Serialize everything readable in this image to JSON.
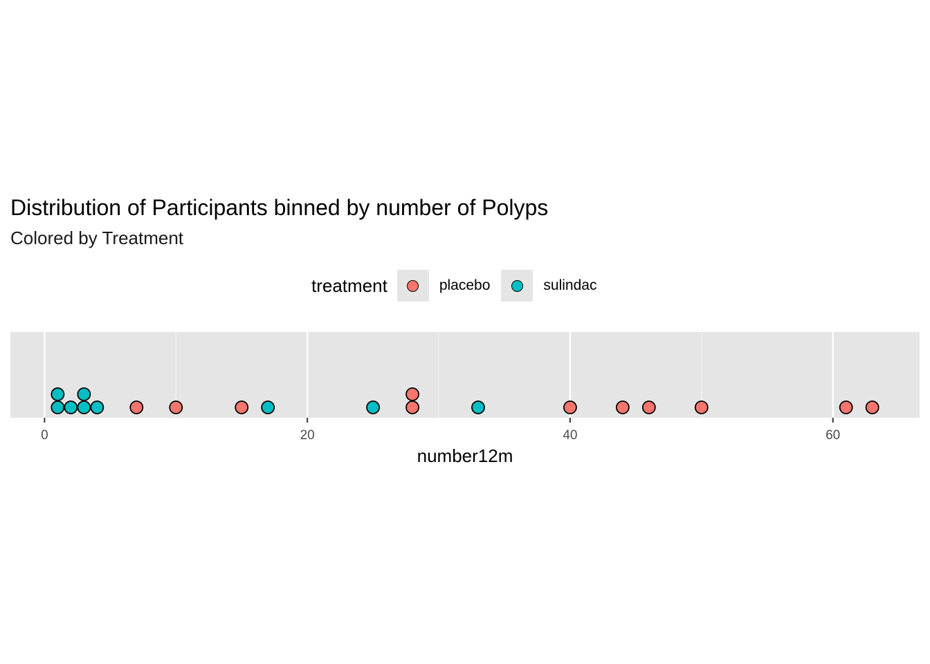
{
  "chart_data": {
    "type": "dotplot",
    "title": "Distribution of Participants binned by number of Polyps",
    "subtitle": "Colored by Treatment",
    "xlabel": "number12m",
    "ylabel": "",
    "xlim": [
      -2.6,
      66.6
    ],
    "xticks": [
      0,
      20,
      40,
      60
    ],
    "grid": true,
    "legend": {
      "title": "treatment",
      "placement": "top",
      "entries": [
        {
          "name": "placebo",
          "color": "#F8766D"
        },
        {
          "name": "sulindac",
          "color": "#00BFC4"
        }
      ]
    },
    "series": [
      {
        "name": "placebo",
        "color": "#F8766D",
        "points": [
          [
            7,
            1
          ],
          [
            10,
            1
          ],
          [
            15,
            1
          ],
          [
            28,
            2
          ],
          [
            40,
            1
          ],
          [
            44,
            1
          ],
          [
            46,
            1
          ],
          [
            50,
            1
          ],
          [
            61,
            1
          ],
          [
            63,
            1
          ]
        ]
      },
      {
        "name": "sulindac",
        "color": "#00BFC4",
        "points": [
          [
            1,
            2
          ],
          [
            2,
            1
          ],
          [
            3,
            2
          ],
          [
            4,
            1
          ],
          [
            17,
            1
          ],
          [
            25,
            1
          ],
          [
            33,
            1
          ]
        ]
      }
    ]
  }
}
